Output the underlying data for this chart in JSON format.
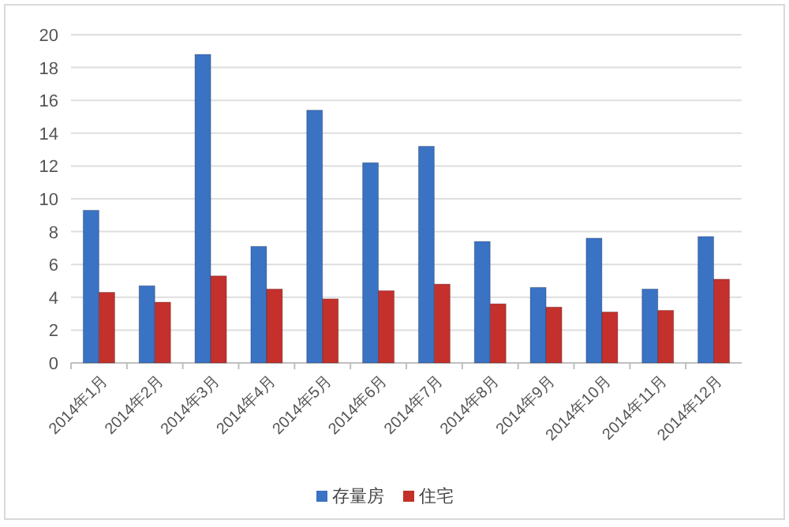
{
  "chart_data": {
    "type": "bar",
    "categories": [
      "2014年1月",
      "2014年2月",
      "2014年3月",
      "2014年4月",
      "2014年5月",
      "2014年6月",
      "2014年7月",
      "2014年8月",
      "2014年9月",
      "2014年10月",
      "2014年11月",
      "2014年12月"
    ],
    "series": [
      {
        "name": "存量房",
        "color": "#3a72c4",
        "values": [
          9.3,
          4.7,
          18.8,
          7.1,
          15.4,
          12.2,
          13.2,
          7.4,
          4.6,
          7.6,
          4.5,
          7.7
        ]
      },
      {
        "name": "住宅",
        "color": "#c4302b",
        "values": [
          4.3,
          3.7,
          5.3,
          4.5,
          3.9,
          4.4,
          4.8,
          3.6,
          3.4,
          3.1,
          3.2,
          5.1
        ]
      }
    ],
    "ylim": [
      0,
      20
    ],
    "yticks": [
      0,
      2,
      4,
      6,
      8,
      10,
      12,
      14,
      16,
      18,
      20
    ],
    "grid": "y",
    "legend": "bottom"
  }
}
